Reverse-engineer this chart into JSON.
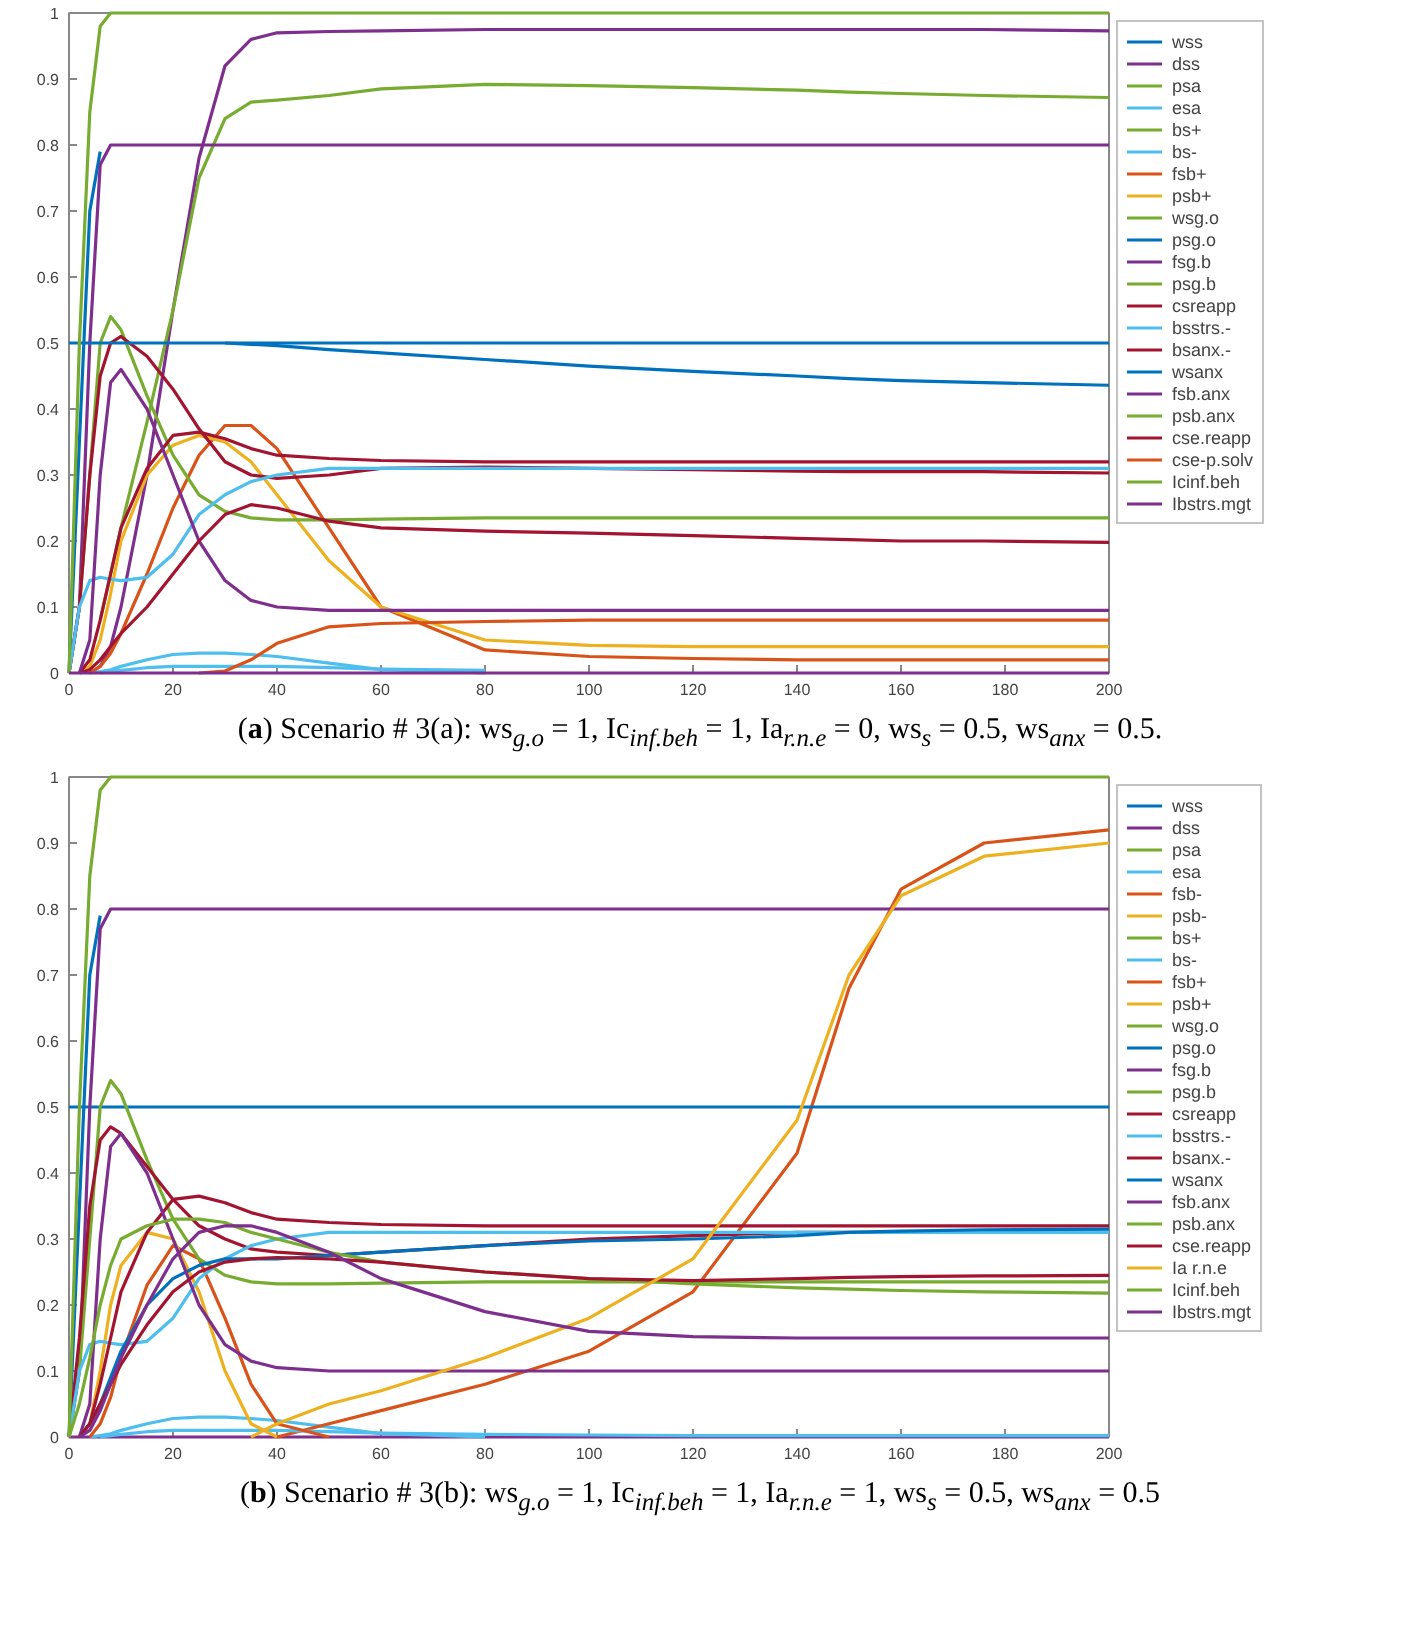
{
  "chart_data": [
    {
      "type": "line",
      "title": "(a) Scenario # 3(a): ws$_{g.o}$ = 1, Ic$_{inf.beh}$ = 1, Ia$_{r.n.e}$ = 0, ws$_{s}$ = 0.5, ws$_{anx}$ = 0.5.",
      "x": [
        0,
        2,
        4,
        6,
        8,
        10,
        15,
        20,
        25,
        30,
        35,
        40,
        50,
        60,
        80,
        100,
        120,
        140,
        150,
        160,
        176,
        200
      ],
      "xlim": [
        0,
        200
      ],
      "ylim": [
        0,
        1
      ],
      "xticks": [
        0,
        20,
        40,
        60,
        80,
        100,
        120,
        140,
        160,
        180,
        200
      ],
      "yticks": [
        0,
        0.1,
        0.2,
        0.3,
        0.4,
        0.5,
        0.6,
        0.7,
        0.8,
        0.9,
        1
      ],
      "grid": false,
      "legend": "right",
      "marker": "none",
      "line_style": "solid",
      "series": [
        {
          "name": "wss",
          "color": "#0072bd",
          "values": [
            0,
            0.35,
            0.7,
            0.79,
            null,
            null,
            null,
            null,
            null,
            null,
            null,
            null,
            null,
            null,
            null,
            null,
            null,
            null,
            null,
            null,
            null,
            null
          ]
        },
        {
          "name": "dss",
          "color": "#7e2f8e",
          "values": [
            null,
            null,
            0,
            0.01,
            0.04,
            0.1,
            0.3,
            0.55,
            0.78,
            0.92,
            0.96,
            0.97,
            0.972,
            0.973,
            0.975,
            0.975,
            0.975,
            0.975,
            0.975,
            0.975,
            0.975,
            0.973
          ]
        },
        {
          "name": "psa",
          "color": "#77ac30",
          "values": [
            null,
            null,
            null,
            0.08,
            0.15,
            0.22,
            0.38,
            0.55,
            0.75,
            0.84,
            0.865,
            0.868,
            0.875,
            0.885,
            0.892,
            0.89,
            0.887,
            0.883,
            0.88,
            0.878,
            0.875,
            0.872
          ]
        },
        {
          "name": "esa",
          "color": "#4dbeee",
          "values": [
            null,
            null,
            0,
            0.002,
            0.005,
            0.01,
            0.02,
            0.028,
            0.03,
            0.03,
            0.028,
            0.025,
            0.015,
            0.005,
            0,
            null,
            null,
            null,
            null,
            null,
            null,
            null
          ]
        },
        {
          "name": "bs+",
          "color": "#77ac30",
          "values": [
            null,
            null,
            null,
            null,
            null,
            null,
            null,
            null,
            null,
            null,
            null,
            null,
            null,
            null,
            null,
            null,
            null,
            null,
            null,
            null,
            null,
            null
          ]
        },
        {
          "name": "bs-",
          "color": "#4dbeee",
          "values": [
            null,
            null,
            null,
            0,
            0.002,
            0.004,
            0.008,
            0.01,
            0.01,
            0.01,
            0.01,
            0.01,
            0.008,
            0.006,
            0.004,
            null,
            null,
            null,
            null,
            null,
            null,
            null
          ]
        },
        {
          "name": "fsb+",
          "color": "#d95319",
          "values": [
            null,
            null,
            0,
            0.01,
            0.03,
            0.06,
            0.15,
            0.25,
            0.33,
            0.375,
            0.375,
            0.34,
            0.22,
            0.1,
            0.035,
            0.025,
            0.022,
            0.02,
            0.02,
            0.02,
            0.02,
            0.02
          ]
        },
        {
          "name": "psb+",
          "color": "#edb120",
          "values": [
            null,
            0,
            0.01,
            0.05,
            0.12,
            0.2,
            0.3,
            0.345,
            0.36,
            0.35,
            0.32,
            0.27,
            0.17,
            0.1,
            0.05,
            0.042,
            0.04,
            0.04,
            0.04,
            0.04,
            0.04,
            0.04
          ]
        },
        {
          "name": "wsg.o",
          "color": "#77ac30",
          "values": [
            null,
            null,
            null,
            null,
            null,
            null,
            null,
            null,
            null,
            null,
            null,
            null,
            null,
            null,
            null,
            null,
            null,
            null,
            null,
            null,
            null,
            null
          ]
        },
        {
          "name": "psg.o",
          "color": "#0072bd",
          "values": [
            null,
            null,
            null,
            null,
            null,
            null,
            null,
            null,
            null,
            0.5,
            0.5,
            0.5,
            0.5,
            0.5,
            0.5,
            0.5,
            0.5,
            0.5,
            0.5,
            0.5,
            0.5,
            0.5
          ]
        },
        {
          "name": "fsg.b",
          "color": "#7e2f8e",
          "values": [
            0,
            0.1,
            0.5,
            0.77,
            0.8,
            0.8,
            0.8,
            0.8,
            0.8,
            0.8,
            0.8,
            0.8,
            0.8,
            0.8,
            0.8,
            0.8,
            0.8,
            0.8,
            0.8,
            0.8,
            0.8,
            0.8
          ]
        },
        {
          "name": "psg.b",
          "color": "#77ac30",
          "values": [
            0,
            0.1,
            0.3,
            0.5,
            0.54,
            0.52,
            0.42,
            0.33,
            0.27,
            0.245,
            0.235,
            0.232,
            0.232,
            0.233,
            0.235,
            0.235,
            0.235,
            0.235,
            0.235,
            0.235,
            0.235,
            0.235
          ]
        },
        {
          "name": "csreapp",
          "color": "#a2142f",
          "values": [
            0,
            0.1,
            0.3,
            0.45,
            0.5,
            0.51,
            0.48,
            0.43,
            0.37,
            0.32,
            0.3,
            0.295,
            0.3,
            0.31,
            0.312,
            0.31,
            0.308,
            0.306,
            0.305,
            0.305,
            0.305,
            0.303
          ]
        },
        {
          "name": "bsstrs.-",
          "color": "#4dbeee",
          "values": [
            0,
            0.1,
            0.14,
            0.145,
            0.142,
            0.14,
            0.145,
            0.18,
            0.24,
            0.27,
            0.29,
            0.3,
            0.31,
            0.31,
            0.31,
            0.31,
            0.31,
            0.31,
            0.31,
            0.31,
            0.31,
            0.31
          ]
        },
        {
          "name": "bsanx.-",
          "color": "#a2142f",
          "values": [
            null,
            0,
            0.02,
            0.08,
            0.15,
            0.22,
            0.31,
            0.36,
            0.365,
            0.355,
            0.34,
            0.33,
            0.325,
            0.322,
            0.32,
            0.32,
            0.32,
            0.32,
            0.32,
            0.32,
            0.32,
            0.32
          ]
        },
        {
          "name": "wsanx",
          "color": "#0072bd",
          "values": [
            0.5,
            0.5,
            0.5,
            0.5,
            0.5,
            0.5,
            0.5,
            0.5,
            0.5,
            0.5,
            0.498,
            0.496,
            0.49,
            0.485,
            0.475,
            0.465,
            0.457,
            0.45,
            0.446,
            0.443,
            0.44,
            0.436
          ]
        },
        {
          "name": "fsb.anx",
          "color": "#7e2f8e",
          "values": [
            null,
            0,
            0.05,
            0.3,
            0.44,
            0.46,
            0.4,
            0.3,
            0.2,
            0.14,
            0.11,
            0.1,
            0.095,
            0.095,
            0.095,
            0.095,
            0.095,
            0.095,
            0.095,
            0.095,
            0.095,
            0.095
          ]
        },
        {
          "name": "psb.anx",
          "color": "#77ac30",
          "values": [
            null,
            null,
            null,
            null,
            null,
            null,
            null,
            null,
            null,
            null,
            null,
            null,
            null,
            null,
            null,
            null,
            null,
            null,
            null,
            null,
            null,
            null
          ]
        },
        {
          "name": "cse.reapp",
          "color": "#a2142f",
          "values": [
            null,
            0,
            0.005,
            0.02,
            0.04,
            0.06,
            0.1,
            0.15,
            0.2,
            0.24,
            0.255,
            0.25,
            0.23,
            0.22,
            0.215,
            0.212,
            0.208,
            0.204,
            0.202,
            0.2,
            0.2,
            0.198
          ]
        },
        {
          "name": "cse-p.solv",
          "color": "#d95319",
          "values": [
            null,
            null,
            null,
            null,
            null,
            null,
            null,
            null,
            0,
            0.003,
            0.02,
            0.045,
            0.07,
            0.075,
            0.078,
            0.08,
            0.08,
            0.08,
            0.08,
            0.08,
            0.08,
            0.08
          ]
        },
        {
          "name": "Icinf.beh",
          "color": "#77ac30",
          "values": [
            0,
            0.5,
            0.85,
            0.98,
            1,
            1,
            1,
            1,
            1,
            1,
            1,
            1,
            1,
            1,
            1,
            1,
            1,
            1,
            1,
            1,
            1,
            1
          ]
        },
        {
          "name": "Ibstrs.mgt",
          "color": "#7e2f8e",
          "values": [
            0,
            0,
            0,
            0,
            0,
            0,
            0,
            0,
            0,
            0,
            0,
            0,
            0,
            0,
            0,
            0,
            0,
            0,
            0,
            0,
            0,
            0
          ]
        }
      ]
    },
    {
      "type": "line",
      "title": "(b) Scenario # 3(b): ws$_{g.o}$ = 1, Ic$_{inf.beh}$ = 1, Ia$_{r.n.e}$ = 1, ws$_{s}$ = 0.5, ws$_{anx}$ = 0.5",
      "x": [
        0,
        2,
        4,
        6,
        8,
        10,
        15,
        20,
        25,
        30,
        35,
        40,
        50,
        60,
        80,
        100,
        120,
        140,
        150,
        160,
        176,
        200
      ],
      "xlim": [
        0,
        200
      ],
      "ylim": [
        0,
        1
      ],
      "xticks": [
        0,
        20,
        40,
        60,
        80,
        100,
        120,
        140,
        160,
        180,
        200
      ],
      "yticks": [
        0,
        0.1,
        0.2,
        0.3,
        0.4,
        0.5,
        0.6,
        0.7,
        0.8,
        0.9,
        1
      ],
      "grid": false,
      "legend": "right",
      "marker": "none",
      "line_style": "solid",
      "series": [
        {
          "name": "wss",
          "color": "#0072bd",
          "values": [
            0,
            0.35,
            0.7,
            0.79,
            null,
            null,
            null,
            null,
            null,
            null,
            null,
            null,
            null,
            null,
            null,
            null,
            null,
            null,
            null,
            null,
            null,
            null
          ]
        },
        {
          "name": "dss",
          "color": "#7e2f8e",
          "values": [
            0,
            0,
            0,
            0,
            0,
            0,
            0,
            0,
            0,
            0,
            0,
            0,
            0,
            0,
            0,
            0,
            0,
            0,
            0,
            0,
            0,
            0
          ]
        },
        {
          "name": "psa",
          "color": "#77ac30",
          "values": [
            null,
            null,
            null,
            null,
            null,
            null,
            null,
            null,
            null,
            null,
            null,
            null,
            null,
            null,
            null,
            null,
            null,
            null,
            null,
            null,
            null,
            null
          ]
        },
        {
          "name": "esa",
          "color": "#4dbeee",
          "values": [
            null,
            null,
            0,
            0.002,
            0.005,
            0.01,
            0.02,
            0.028,
            0.03,
            0.03,
            0.028,
            0.025,
            0.015,
            0.005,
            0,
            null,
            null,
            null,
            null,
            null,
            null,
            null
          ]
        },
        {
          "name": "fsb-",
          "color": "#d95319",
          "values": [
            null,
            null,
            null,
            null,
            null,
            null,
            null,
            null,
            null,
            null,
            null,
            0,
            0.02,
            0.04,
            0.08,
            0.13,
            0.22,
            0.43,
            0.68,
            0.83,
            0.9,
            0.92
          ]
        },
        {
          "name": "psb-",
          "color": "#edb120",
          "values": [
            null,
            null,
            null,
            null,
            null,
            null,
            null,
            null,
            null,
            null,
            null,
            null,
            null,
            null,
            null,
            null,
            null,
            null,
            null,
            null,
            null,
            null
          ]
        },
        {
          "name": "bs+",
          "color": "#77ac30",
          "values": [
            null,
            null,
            null,
            null,
            null,
            null,
            null,
            null,
            null,
            null,
            null,
            null,
            null,
            null,
            null,
            null,
            null,
            null,
            null,
            null,
            null,
            null
          ]
        },
        {
          "name": "bs-",
          "color": "#4dbeee",
          "values": [
            null,
            null,
            null,
            0,
            0.002,
            0.004,
            0.008,
            0.01,
            0.01,
            0.01,
            0.01,
            0.01,
            0.008,
            0.006,
            0.004,
            0.003,
            0.002,
            0.002,
            0.002,
            0.002,
            0.002,
            0.002
          ]
        },
        {
          "name": "fsb+",
          "color": "#d95319",
          "values": [
            null,
            null,
            0,
            0.02,
            0.06,
            0.12,
            0.23,
            0.29,
            0.27,
            0.18,
            0.08,
            0.02,
            0,
            null,
            null,
            null,
            null,
            null,
            null,
            null,
            null,
            null
          ]
        },
        {
          "name": "psb+",
          "color": "#edb120",
          "values": [
            null,
            0,
            0.02,
            0.1,
            0.2,
            0.26,
            0.31,
            0.3,
            0.22,
            0.1,
            0.02,
            0,
            null,
            null,
            null,
            null,
            null,
            null,
            null,
            null,
            null,
            null
          ]
        },
        {
          "name": "wsg.o",
          "color": "#77ac30",
          "values": [
            null,
            null,
            null,
            null,
            null,
            null,
            null,
            null,
            null,
            null,
            null,
            null,
            null,
            null,
            null,
            null,
            null,
            null,
            null,
            null,
            null,
            null
          ]
        },
        {
          "name": "psg.o",
          "color": "#0072bd",
          "values": [
            0.5,
            0.5,
            0.5,
            0.5,
            0.5,
            0.5,
            0.5,
            0.5,
            0.5,
            0.5,
            0.5,
            0.5,
            0.5,
            0.5,
            0.5,
            0.5,
            0.5,
            0.5,
            0.5,
            0.5,
            0.5,
            0.5
          ]
        },
        {
          "name": "fsg.b",
          "color": "#7e2f8e",
          "values": [
            0,
            0.1,
            0.5,
            0.77,
            0.8,
            0.8,
            0.8,
            0.8,
            0.8,
            0.8,
            0.8,
            0.8,
            0.8,
            0.8,
            0.8,
            0.8,
            0.8,
            0.8,
            0.8,
            0.8,
            0.8,
            0.8
          ]
        },
        {
          "name": "psg.b",
          "color": "#77ac30",
          "values": [
            0,
            0.1,
            0.3,
            0.5,
            0.54,
            0.52,
            0.42,
            0.33,
            0.27,
            0.245,
            0.235,
            0.232,
            0.232,
            0.233,
            0.235,
            0.235,
            0.235,
            0.235,
            0.235,
            0.235,
            0.235,
            0.235
          ]
        },
        {
          "name": "csreapp",
          "color": "#a2142f",
          "values": [
            0,
            0.15,
            0.35,
            0.45,
            0.47,
            0.46,
            0.41,
            0.36,
            0.32,
            0.3,
            0.285,
            0.28,
            0.275,
            0.28,
            0.29,
            0.3,
            0.305,
            0.31,
            0.31,
            0.31,
            0.31,
            0.31
          ]
        },
        {
          "name": "bsstrs.-",
          "color": "#4dbeee",
          "values": [
            0,
            0.1,
            0.14,
            0.145,
            0.142,
            0.14,
            0.145,
            0.18,
            0.24,
            0.27,
            0.29,
            0.3,
            0.31,
            0.31,
            0.31,
            0.31,
            0.31,
            0.31,
            0.31,
            0.31,
            0.31,
            0.31
          ]
        },
        {
          "name": "bsanx.-",
          "color": "#a2142f",
          "values": [
            null,
            0,
            0.02,
            0.08,
            0.15,
            0.22,
            0.31,
            0.36,
            0.365,
            0.355,
            0.34,
            0.33,
            0.325,
            0.322,
            0.32,
            0.32,
            0.32,
            0.32,
            0.32,
            0.32,
            0.32,
            0.32
          ]
        },
        {
          "name": "wsanx",
          "color": "#0072bd",
          "values": [
            null,
            0,
            0.02,
            0.05,
            0.09,
            0.13,
            0.2,
            0.24,
            0.26,
            0.27,
            0.27,
            0.27,
            0.275,
            0.28,
            0.29,
            0.297,
            0.3,
            0.305,
            0.31,
            0.312,
            0.314,
            0.315
          ]
        },
        {
          "name": "fsb.anx",
          "color": "#7e2f8e",
          "values": [
            null,
            0,
            0.05,
            0.3,
            0.44,
            0.46,
            0.4,
            0.3,
            0.2,
            0.14,
            0.115,
            0.105,
            0.1,
            0.1,
            0.1,
            0.1,
            0.1,
            0.1,
            0.1,
            0.1,
            0.1,
            0.1
          ]
        },
        {
          "name": "psb.anx",
          "color": "#77ac30",
          "values": [
            0,
            0.05,
            0.12,
            0.2,
            0.26,
            0.3,
            0.32,
            0.33,
            0.33,
            0.325,
            0.31,
            0.3,
            0.28,
            0.265,
            0.25,
            0.24,
            0.232,
            0.226,
            0.224,
            0.222,
            0.22,
            0.218
          ]
        },
        {
          "name": "cse.reapp",
          "color": "#a2142f",
          "values": [
            null,
            0,
            0.02,
            0.05,
            0.08,
            0.11,
            0.17,
            0.22,
            0.25,
            0.265,
            0.27,
            0.272,
            0.27,
            0.265,
            0.25,
            0.24,
            0.237,
            0.24,
            0.242,
            0.243,
            0.244,
            0.245
          ]
        },
        {
          "name": "Ia r.n.e",
          "color": "#edb120",
          "values": [
            null,
            null,
            null,
            null,
            null,
            null,
            null,
            null,
            null,
            null,
            0,
            0.02,
            0.05,
            0.07,
            0.12,
            0.18,
            0.27,
            0.48,
            0.7,
            0.82,
            0.88,
            0.9
          ]
        },
        {
          "name": "Icinf.beh",
          "color": "#77ac30",
          "values": [
            0,
            0.5,
            0.85,
            0.98,
            1,
            1,
            1,
            1,
            1,
            1,
            1,
            1,
            1,
            1,
            1,
            1,
            1,
            1,
            1,
            1,
            1,
            1
          ]
        },
        {
          "name": "Ibstrs.mgt",
          "color": "#7e2f8e",
          "values": [
            null,
            0,
            0.01,
            0.04,
            0.08,
            0.12,
            0.2,
            0.27,
            0.31,
            0.32,
            0.32,
            0.31,
            0.28,
            0.24,
            0.19,
            0.16,
            0.152,
            0.15,
            0.15,
            0.15,
            0.15,
            0.15
          ]
        }
      ]
    }
  ]
}
